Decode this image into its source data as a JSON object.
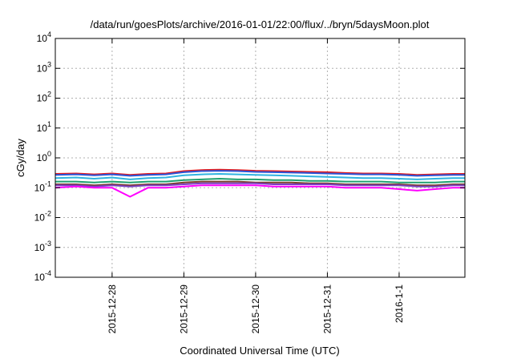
{
  "chart_data": {
    "type": "line",
    "title": "/data/run/goesPlots/archive/2016-01-01/22:00/flux/../bryn/5daysMoon.plot",
    "xlabel": "Coordinated Universal Time (UTC)",
    "ylabel": "cGy/day",
    "yscale": "log",
    "ylim": [
      0.0001,
      10000
    ],
    "xlim": [
      "2015-12-27T05:00",
      "2016-01-01T22:00"
    ],
    "grid": true,
    "x_ticks": [
      {
        "value": "2015-12-28T00:00",
        "label": "2015-12-28"
      },
      {
        "value": "2015-12-29T00:00",
        "label": "2015-12-29"
      },
      {
        "value": "2015-12-30T00:00",
        "label": "2015-12-30"
      },
      {
        "value": "2015-12-31T00:00",
        "label": "2015-12-31"
      },
      {
        "value": "2016-01-01T00:00",
        "label": "2016-1-1"
      }
    ],
    "y_ticks": [
      {
        "value": 0.0001,
        "base": "10",
        "exp": "-4"
      },
      {
        "value": 0.001,
        "base": "10",
        "exp": "-3"
      },
      {
        "value": 0.01,
        "base": "10",
        "exp": "-2"
      },
      {
        "value": 0.1,
        "base": "10",
        "exp": "-1"
      },
      {
        "value": 1,
        "base": "10",
        "exp": "0"
      },
      {
        "value": 10,
        "base": "10",
        "exp": "1"
      },
      {
        "value": 100,
        "base": "10",
        "exp": "2"
      },
      {
        "value": 1000,
        "base": "10",
        "exp": "3"
      },
      {
        "value": 10000,
        "base": "10",
        "exp": "4"
      }
    ],
    "x": [
      "2015-12-27T05:00",
      "2015-12-27T12:00",
      "2015-12-27T18:00",
      "2015-12-28T00:00",
      "2015-12-28T06:00",
      "2015-12-28T12:00",
      "2015-12-28T18:00",
      "2015-12-29T00:00",
      "2015-12-29T06:00",
      "2015-12-29T12:00",
      "2015-12-29T18:00",
      "2015-12-30T00:00",
      "2015-12-30T06:00",
      "2015-12-30T12:00",
      "2015-12-30T18:00",
      "2015-12-31T00:00",
      "2015-12-31T06:00",
      "2015-12-31T12:00",
      "2015-12-31T18:00",
      "2016-01-01T00:00",
      "2016-01-01T06:00",
      "2016-01-01T12:00",
      "2016-01-01T18:00",
      "2016-01-01T22:00"
    ],
    "series": [
      {
        "color": "#e41a1c",
        "values": [
          0.29,
          0.3,
          0.28,
          0.3,
          0.27,
          0.29,
          0.3,
          0.36,
          0.39,
          0.4,
          0.39,
          0.37,
          0.36,
          0.35,
          0.34,
          0.33,
          0.31,
          0.3,
          0.3,
          0.29,
          0.27,
          0.28,
          0.29,
          0.29
        ]
      },
      {
        "color": "#2b55d8",
        "values": [
          0.27,
          0.28,
          0.26,
          0.28,
          0.25,
          0.27,
          0.28,
          0.33,
          0.36,
          0.37,
          0.36,
          0.34,
          0.33,
          0.32,
          0.31,
          0.3,
          0.29,
          0.28,
          0.28,
          0.27,
          0.25,
          0.26,
          0.27,
          0.27
        ]
      },
      {
        "color": "#2fb4e0",
        "values": [
          0.21,
          0.22,
          0.2,
          0.22,
          0.19,
          0.21,
          0.22,
          0.26,
          0.28,
          0.29,
          0.28,
          0.27,
          0.26,
          0.25,
          0.24,
          0.23,
          0.22,
          0.21,
          0.21,
          0.2,
          0.19,
          0.2,
          0.21,
          0.21
        ]
      },
      {
        "color": "#20a070",
        "values": [
          0.16,
          0.16,
          0.15,
          0.16,
          0.15,
          0.16,
          0.16,
          0.18,
          0.19,
          0.2,
          0.19,
          0.19,
          0.18,
          0.18,
          0.17,
          0.17,
          0.16,
          0.16,
          0.16,
          0.15,
          0.15,
          0.15,
          0.16,
          0.16
        ]
      },
      {
        "color": "#7a3c2a",
        "values": [
          0.13,
          0.13,
          0.12,
          0.13,
          0.12,
          0.13,
          0.13,
          0.15,
          0.16,
          0.16,
          0.16,
          0.15,
          0.15,
          0.15,
          0.14,
          0.14,
          0.13,
          0.13,
          0.13,
          0.13,
          0.12,
          0.12,
          0.13,
          0.13
        ]
      },
      {
        "color": "#7a3fc0",
        "values": [
          0.12,
          0.12,
          0.11,
          0.12,
          0.11,
          0.12,
          0.12,
          0.13,
          0.14,
          0.14,
          0.14,
          0.14,
          0.13,
          0.13,
          0.13,
          0.13,
          0.12,
          0.12,
          0.12,
          0.12,
          0.11,
          0.11,
          0.12,
          0.12
        ]
      },
      {
        "color": "#ff00ff",
        "values": [
          0.1,
          0.11,
          0.1,
          0.1,
          0.05,
          0.1,
          0.1,
          0.11,
          0.12,
          0.12,
          0.12,
          0.12,
          0.11,
          0.11,
          0.11,
          0.11,
          0.1,
          0.1,
          0.1,
          0.09,
          0.08,
          0.09,
          0.1,
          0.1
        ]
      }
    ]
  }
}
